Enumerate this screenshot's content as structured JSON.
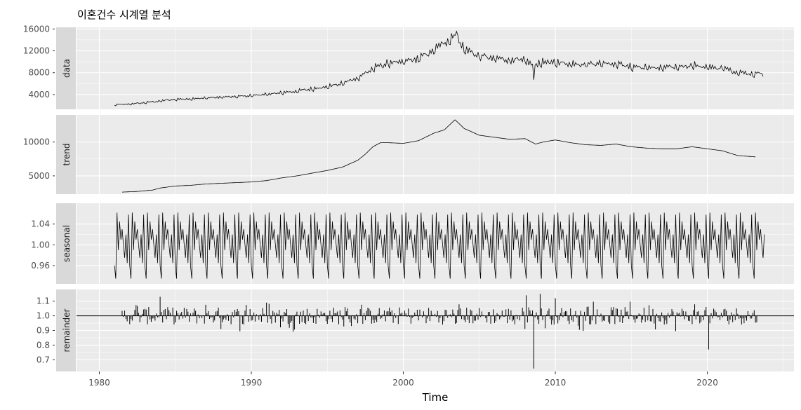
{
  "chart_data": {
    "type": "line",
    "title": "이혼건수 시계열 분석",
    "xlabel": "Time",
    "x_axis": {
      "range": [
        1978.5,
        2025.7
      ],
      "ticks": [
        1980,
        1990,
        2000,
        2010,
        2020
      ],
      "tick_labels": [
        "1980",
        "1990",
        "2000",
        "2010",
        "2020"
      ]
    },
    "panels": [
      {
        "name": "data",
        "ylim": [
          1300,
          16300
        ],
        "ticks": [
          4000,
          8000,
          12000,
          16000
        ],
        "tick_labels": [
          "4000",
          "8000",
          "12000",
          "16000"
        ],
        "anchors": [
          [
            1981.0,
            2100
          ],
          [
            1982.0,
            2250
          ],
          [
            1983.0,
            2500
          ],
          [
            1984.0,
            2800
          ],
          [
            1985.0,
            3100
          ],
          [
            1986.0,
            3200
          ],
          [
            1987.0,
            3350
          ],
          [
            1988.0,
            3500
          ],
          [
            1989.0,
            3600
          ],
          [
            1990.0,
            3800
          ],
          [
            1991.0,
            4000
          ],
          [
            1992.0,
            4300
          ],
          [
            1993.0,
            4600
          ],
          [
            1994.0,
            5000
          ],
          [
            1995.0,
            5400
          ],
          [
            1996.0,
            6000
          ],
          [
            1997.0,
            7000
          ],
          [
            1998.0,
            8700
          ],
          [
            1999.0,
            9700
          ],
          [
            2000.0,
            9900
          ],
          [
            2001.0,
            10500
          ],
          [
            2002.0,
            12000
          ],
          [
            2003.0,
            14000
          ],
          [
            2003.5,
            15000
          ],
          [
            2004.0,
            12200
          ],
          [
            2005.0,
            11000
          ],
          [
            2006.0,
            10500
          ],
          [
            2007.0,
            10300
          ],
          [
            2008.0,
            10200
          ],
          [
            2008.5,
            9200
          ],
          [
            2009.0,
            9800
          ],
          [
            2010.0,
            9800
          ],
          [
            2011.0,
            9600
          ],
          [
            2012.0,
            9500
          ],
          [
            2013.0,
            9700
          ],
          [
            2014.0,
            9600
          ],
          [
            2015.0,
            9000
          ],
          [
            2016.0,
            8900
          ],
          [
            2017.0,
            8800
          ],
          [
            2018.0,
            9000
          ],
          [
            2019.0,
            9300
          ],
          [
            2020.0,
            8900
          ],
          [
            2021.0,
            8800
          ],
          [
            2022.0,
            8000
          ],
          [
            2023.5,
            7700
          ]
        ],
        "noise_amplitude": 0.06
      },
      {
        "name": "trend",
        "ylim": [
          2300,
          14000
        ],
        "ticks": [
          5000,
          10000
        ],
        "tick_labels": [
          "5000",
          "10000"
        ],
        "anchors": [
          [
            1981.5,
            2600
          ],
          [
            1982.5,
            2700
          ],
          [
            1983.5,
            2900
          ],
          [
            1984.0,
            3200
          ],
          [
            1985.0,
            3500
          ],
          [
            1986.0,
            3600
          ],
          [
            1987.0,
            3800
          ],
          [
            1988.0,
            3900
          ],
          [
            1989.0,
            4000
          ],
          [
            1990.0,
            4100
          ],
          [
            1991.0,
            4300
          ],
          [
            1992.0,
            4700
          ],
          [
            1993.0,
            5000
          ],
          [
            1994.0,
            5400
          ],
          [
            1995.0,
            5800
          ],
          [
            1996.0,
            6300
          ],
          [
            1997.0,
            7300
          ],
          [
            1997.5,
            8200
          ],
          [
            1998.0,
            9300
          ],
          [
            1998.5,
            9900
          ],
          [
            1999.0,
            9900
          ],
          [
            2000.0,
            9800
          ],
          [
            2001.0,
            10200
          ],
          [
            2002.0,
            11300
          ],
          [
            2002.7,
            11800
          ],
          [
            2003.4,
            13300
          ],
          [
            2004.0,
            12000
          ],
          [
            2005.0,
            11000
          ],
          [
            2006.0,
            10700
          ],
          [
            2007.0,
            10400
          ],
          [
            2008.0,
            10500
          ],
          [
            2008.7,
            9700
          ],
          [
            2009.2,
            10000
          ],
          [
            2010.0,
            10300
          ],
          [
            2011.0,
            9900
          ],
          [
            2012.0,
            9600
          ],
          [
            2013.0,
            9500
          ],
          [
            2014.0,
            9700
          ],
          [
            2015.0,
            9300
          ],
          [
            2016.0,
            9100
          ],
          [
            2017.0,
            9000
          ],
          [
            2018.0,
            9000
          ],
          [
            2019.0,
            9300
          ],
          [
            2020.0,
            9000
          ],
          [
            2021.0,
            8700
          ],
          [
            2022.0,
            8000
          ],
          [
            2023.2,
            7800
          ]
        ]
      },
      {
        "name": "seasonal",
        "ylim": [
          0.925,
          1.08
        ],
        "ticks": [
          0.96,
          1.0,
          1.04
        ],
        "tick_labels": [
          "0.96",
          "1.00",
          "1.04"
        ],
        "start": 1981.0,
        "end": 2023.8,
        "pattern": [
          0.96,
          0.935,
          1.062,
          0.99,
          1.045,
          1.01,
          1.03,
          1.0,
          0.975,
          1.02,
          0.965,
          1.058
        ]
      },
      {
        "name": "remainder",
        "ylim": [
          0.62,
          1.18
        ],
        "ticks": [
          0.7,
          0.8,
          0.9,
          1.0,
          1.1
        ],
        "tick_labels": [
          "0.7",
          "0.8",
          "0.9",
          "1.0",
          "1.1"
        ],
        "start": 1981.5,
        "end": 2023.3,
        "baseline": 1.0,
        "spikes": [
          [
            2008.6,
            0.72
          ],
          [
            2008.55,
            0.64
          ],
          [
            2020.1,
            0.77
          ],
          [
            1984.0,
            1.13
          ],
          [
            2010.0,
            1.12
          ],
          [
            2008.1,
            1.14
          ],
          [
            2009.0,
            1.15
          ]
        ]
      }
    ]
  }
}
